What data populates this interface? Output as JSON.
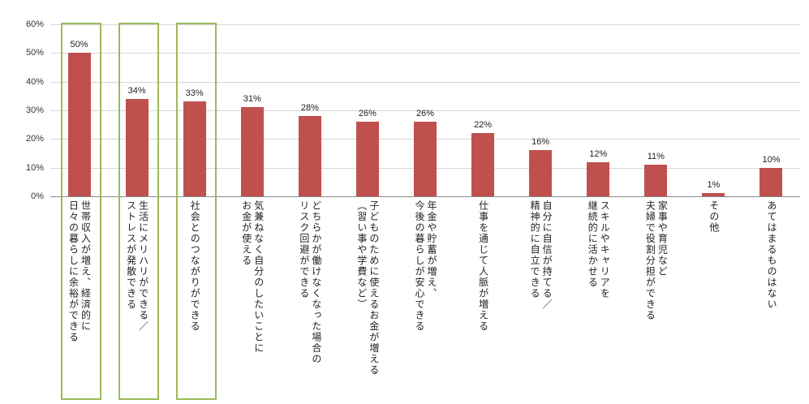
{
  "chart_data": {
    "type": "bar",
    "categories": [
      "世帯収入が増え、経済的に\n日々の暮らしに余裕ができる",
      "生活にメリハリができる／\nストレスが発散できる",
      "社会とのつながりができる",
      "気兼ねなく自分のしたいことに\nお金が使える",
      "どちらかが働けなくなった場合の\nリスク回避ができる",
      "子どものために使えるお金が増える\n（習い事や学費など）",
      "年金や貯蓄が増え、\n今後の暮らしが安心できる",
      "仕事を通じて人脈が増える",
      "自分に自信が持てる／\n精神的に自立できる",
      "スキルやキャリアを\n継続的に活かせる",
      "家事や育児など\n夫婦で役割分担ができる",
      "その他",
      "あてはまるものはない"
    ],
    "values": [
      50,
      34,
      33,
      31,
      28,
      26,
      26,
      22,
      16,
      12,
      11,
      1,
      10
    ],
    "data_labels": [
      "50%",
      "34%",
      "33%",
      "31%",
      "28%",
      "26%",
      "26%",
      "22%",
      "16%",
      "12%",
      "11%",
      "1%",
      "10%"
    ],
    "y_ticks": [
      "60%",
      "50%",
      "40%",
      "30%",
      "20%",
      "10%",
      "0%"
    ],
    "ylim": [
      0,
      60
    ],
    "grid": true,
    "legend": "none",
    "bar_color": "#C0504D",
    "highlight_border_color": "#9BBB59",
    "highlighted_categories": [
      0,
      1,
      2
    ]
  }
}
